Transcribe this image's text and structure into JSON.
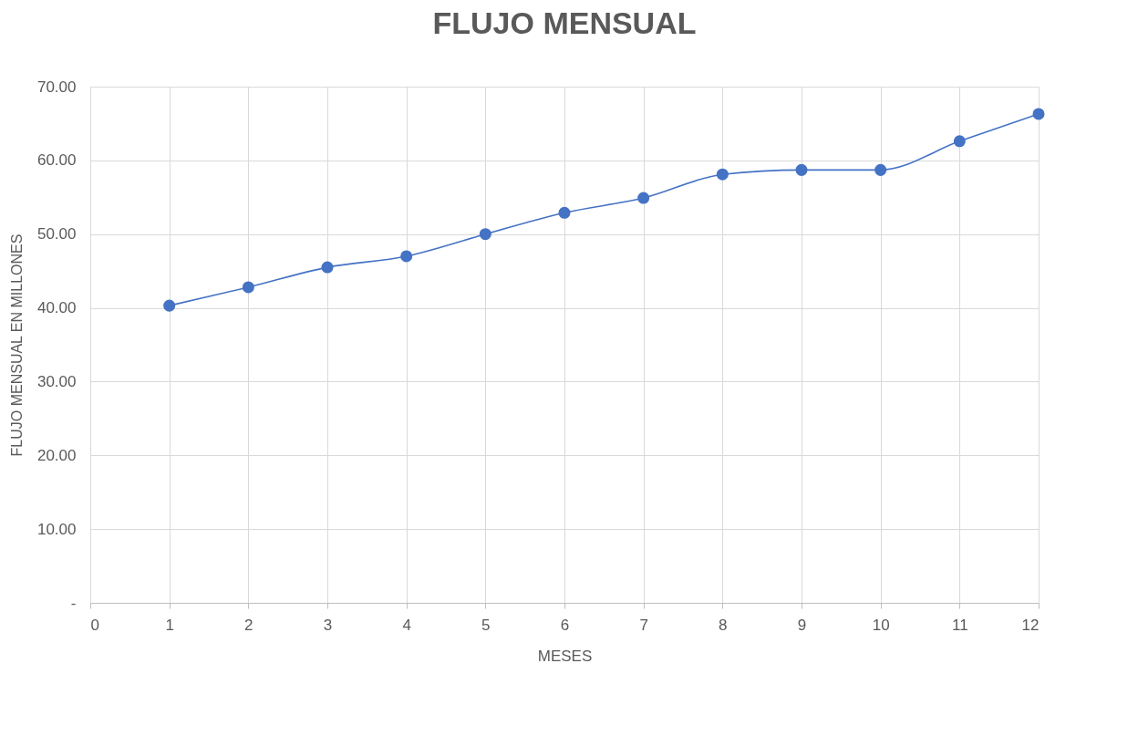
{
  "chart_data": {
    "type": "line",
    "title": "FLUJO MENSUAL",
    "xlabel": "MESES",
    "ylabel": "FLUJO MENSUAL EN MILLONES",
    "x": [
      1,
      2,
      3,
      4,
      5,
      6,
      7,
      8,
      9,
      10,
      11,
      12
    ],
    "series": [
      {
        "color": "#4472c4",
        "values": [
          40.3,
          42.8,
          45.5,
          47.0,
          50.0,
          52.9,
          54.9,
          58.1,
          58.7,
          58.7,
          62.6,
          66.3
        ]
      }
    ],
    "xlim": [
      0,
      12
    ],
    "xticks": [
      0,
      1,
      2,
      3,
      4,
      5,
      6,
      7,
      8,
      9,
      10,
      11,
      12
    ],
    "ylim": [
      0,
      70
    ],
    "yticks": [
      {
        "value": 0,
        "label": "-"
      },
      {
        "value": 10,
        "label": "10.00"
      },
      {
        "value": 20,
        "label": "20.00"
      },
      {
        "value": 30,
        "label": "30.00"
      },
      {
        "value": 40,
        "label": "40.00"
      },
      {
        "value": 50,
        "label": "50.00"
      },
      {
        "value": 60,
        "label": "60.00"
      },
      {
        "value": 70,
        "label": "70.00"
      }
    ],
    "grid": true,
    "marker": "circle",
    "line_style": "solid"
  }
}
